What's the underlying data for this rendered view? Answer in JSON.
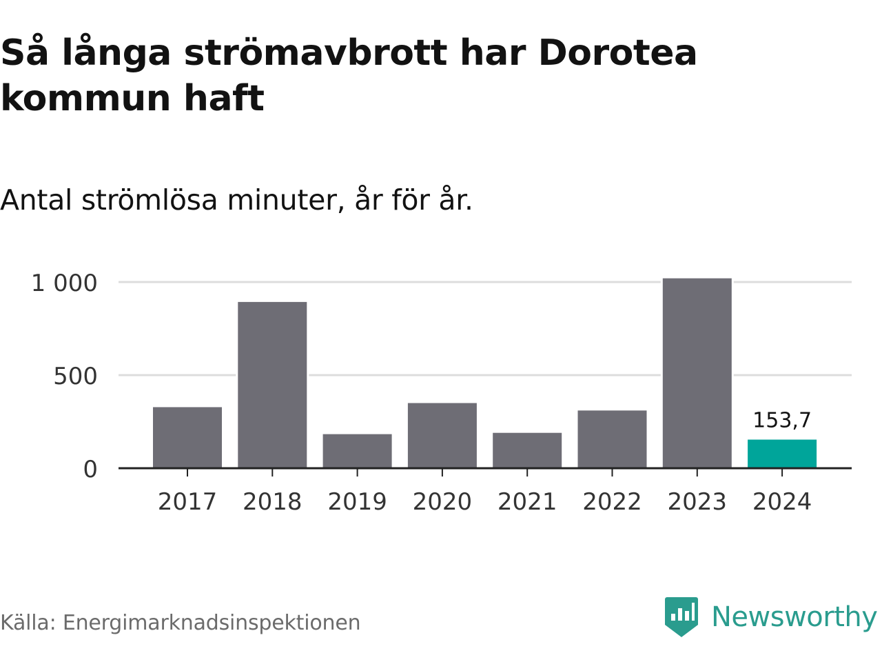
{
  "title": "Så långa strömavbrott har Dorotea kommun haft",
  "subtitle": "Antal strömlösa minuter, år för år.",
  "source": "Källa: Energimarknadsinspektionen",
  "logo": {
    "text": "Newsworthy",
    "icon": "newsworthy-bar-chart-icon",
    "color": "#2a9c8e"
  },
  "colors": {
    "bar": "#6e6d75",
    "highlight": "#00a59a",
    "grid": "#dddddd",
    "axis": "#222222"
  },
  "chart_data": {
    "type": "bar",
    "title": "Så långa strömavbrott har Dorotea kommun haft",
    "subtitle": "Antal strömlösa minuter, år för år.",
    "xlabel": "",
    "ylabel": "",
    "categories": [
      "2017",
      "2018",
      "2019",
      "2020",
      "2021",
      "2022",
      "2023",
      "2024"
    ],
    "values": [
      328,
      893,
      183,
      350,
      190,
      310,
      1020,
      153.7
    ],
    "highlight_index": 7,
    "data_labels": [
      {
        "index": 7,
        "text": "153,7"
      }
    ],
    "ylim": [
      0,
      1000
    ],
    "y_ticks": [
      {
        "value": 0,
        "label": "0"
      },
      {
        "value": 500,
        "label": "500"
      },
      {
        "value": 1000,
        "label": "1 000"
      }
    ],
    "grid": true
  }
}
